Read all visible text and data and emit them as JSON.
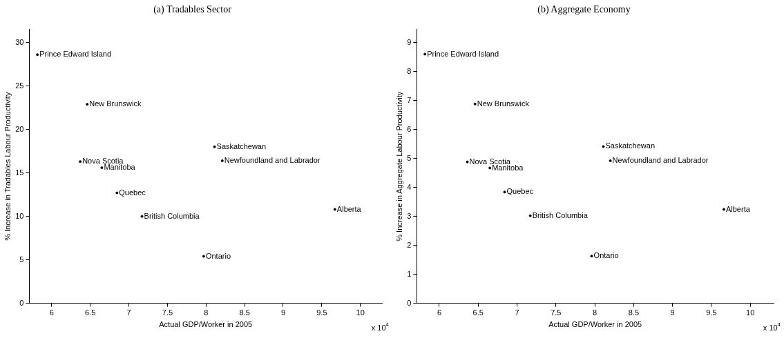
{
  "chart_data": [
    {
      "type": "scatter",
      "title": "(a) Tradables Sector",
      "xlabel": "Actual GDP/Worker in 2005",
      "ylabel": "% Increase in Tradables Labour Productivity",
      "annotations": [
        "x 10$^{4}$"
      ],
      "marker": "circle",
      "color": "#000000",
      "x": [
        5.815,
        6.46,
        8.11,
        8.21,
        6.37,
        6.65,
        6.845,
        7.17,
        7.97,
        9.67
      ],
      "values": [
        28.6,
        22.9,
        18.0,
        16.4,
        16.3,
        15.6,
        12.7,
        10.0,
        5.4,
        10.8
      ],
      "value_labels": [
        "Prince Edward Island",
        "New Brunswick",
        "Saskatchewan",
        "Newfoundland and Labrador",
        "Nova Scotia",
        "Manitoba",
        "Quebec",
        "British Columbia",
        "Ontario",
        "Alberta"
      ],
      "xlim": [
        5.71,
        10.28
      ],
      "xticks": [
        6,
        6.5,
        7,
        7.5,
        8,
        8.5,
        9,
        9.5,
        10
      ],
      "ylim": [
        0,
        31.5
      ],
      "yticks": [
        0,
        5,
        10,
        15,
        20,
        25,
        30
      ]
    },
    {
      "type": "scatter",
      "title": "(b) Aggregate Economy",
      "xlabel": "Actual GDP/Worker in 2005",
      "ylabel": "% Increase in Aggregate Labour Productivity",
      "annotations": [
        "x 10$^{4}$"
      ],
      "marker": "circle",
      "color": "#000000",
      "x": [
        5.815,
        6.46,
        8.11,
        8.2,
        6.36,
        6.65,
        6.84,
        7.17,
        7.96,
        9.66
      ],
      "values": [
        8.6,
        6.88,
        5.41,
        4.92,
        4.88,
        4.67,
        3.84,
        3.02,
        1.63,
        3.24
      ],
      "value_labels": [
        "Prince Edward Island",
        "New Brunswick",
        "Saskatchewan",
        "Newfoundland and Labrador",
        "Nova Scotia",
        "Manitoba",
        "Quebec",
        "British Columbia",
        "Ontario",
        "Alberta"
      ],
      "xlim": [
        5.71,
        10.3
      ],
      "xticks": [
        6,
        6.5,
        7,
        7.5,
        8,
        8.5,
        9,
        9.5,
        10
      ],
      "ylim": [
        0,
        9.45
      ],
      "yticks": [
        0,
        1,
        2,
        3,
        4,
        5,
        6,
        7,
        8,
        9
      ]
    }
  ]
}
